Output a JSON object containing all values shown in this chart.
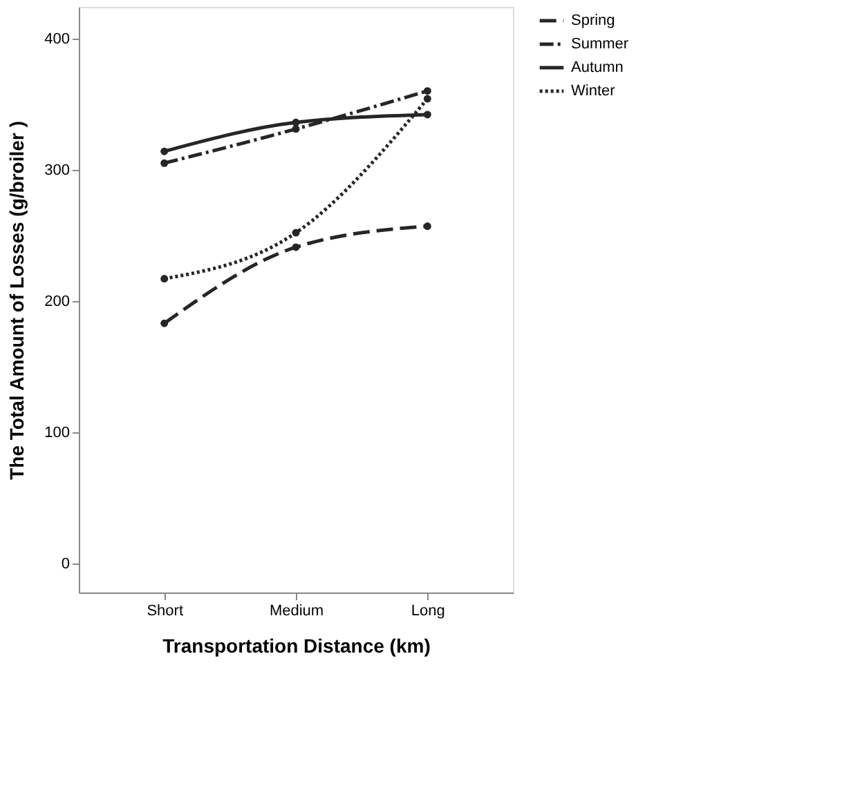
{
  "chart_data": {
    "type": "line",
    "xlabel": "Transportation Distance (km)",
    "ylabel": "The Total Amount of Losses (g/broiler )",
    "categories": [
      "Short",
      "Medium",
      "Long"
    ],
    "series": [
      {
        "name": "Spring",
        "color": "#262626",
        "values": [
          183,
          241,
          257
        ],
        "line_style": "dashed"
      },
      {
        "name": "Summer",
        "color": "#262626",
        "values": [
          305,
          331,
          360
        ],
        "line_style": "dashdot"
      },
      {
        "name": "Autumn",
        "color": "#262626",
        "values": [
          314,
          336,
          342
        ],
        "line_style": "solid"
      },
      {
        "name": "Winter",
        "color": "#262626",
        "values": [
          217,
          252,
          354
        ],
        "line_style": "dotted"
      }
    ],
    "ylim": [
      -22,
      424
    ],
    "yticks": [
      0,
      100,
      200,
      300,
      400
    ],
    "marker": "circle",
    "grid": false,
    "legend": "right"
  }
}
